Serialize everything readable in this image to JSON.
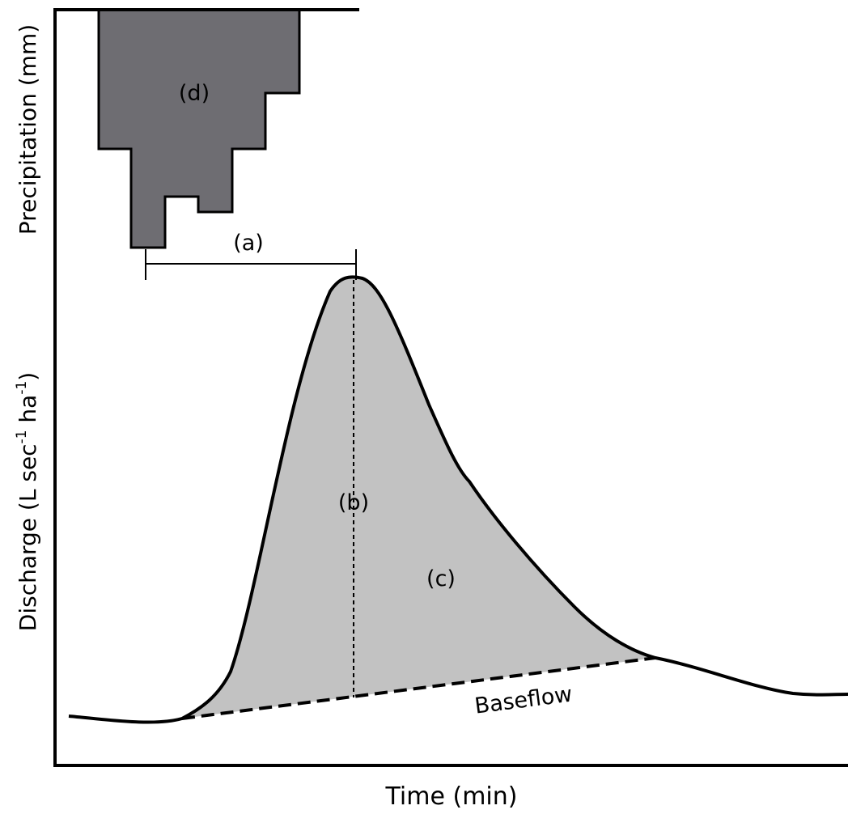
{
  "diagram": {
    "axis_labels": {
      "x": "Time (min)",
      "y_top": "Precipitation (mm)",
      "y_bottom_main": "Discharge (L sec",
      "y_bottom_sup1": "-1",
      "y_bottom_mid": " ha",
      "y_bottom_sup2": "-1",
      "y_bottom_close": ")"
    },
    "region_labels": {
      "a": "(a)",
      "b": "(b)",
      "c": "(c)",
      "d": "(d)"
    },
    "baseflow_label": "Baseflow",
    "colors": {
      "hyetograph_fill": "#6e6d72",
      "runoff_fill": "#c2c2c2",
      "line": "#000000",
      "background": "#ffffff"
    }
  }
}
